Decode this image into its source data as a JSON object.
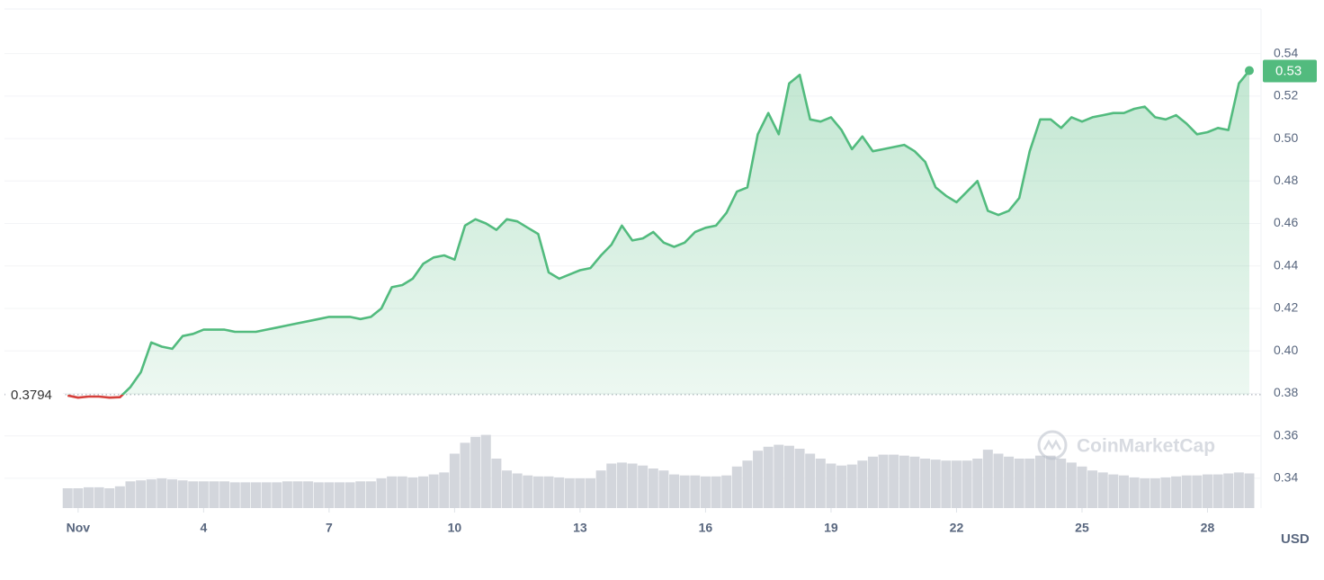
{
  "chart_data": {
    "type": "line",
    "x": [
      0.75,
      1,
      1.25,
      1.5,
      1.75,
      2,
      2.25,
      2.5,
      2.75,
      3,
      3.25,
      3.5,
      3.75,
      4,
      4.25,
      4.5,
      4.75,
      5,
      5.25,
      5.5,
      5.75,
      6,
      6.25,
      6.5,
      6.75,
      7,
      7.25,
      7.5,
      7.75,
      8,
      8.25,
      8.5,
      8.75,
      9,
      9.25,
      9.5,
      9.75,
      10,
      10.25,
      10.5,
      10.75,
      11,
      11.25,
      11.5,
      11.75,
      12,
      12.25,
      12.5,
      12.75,
      13,
      13.25,
      13.5,
      13.75,
      14,
      14.25,
      14.5,
      14.75,
      15,
      15.25,
      15.5,
      15.75,
      16,
      16.25,
      16.5,
      16.75,
      17,
      17.25,
      17.5,
      17.75,
      18,
      18.25,
      18.5,
      18.75,
      19,
      19.25,
      19.5,
      19.75,
      20,
      20.25,
      20.5,
      20.75,
      21,
      21.25,
      21.5,
      21.75,
      22,
      22.25,
      22.5,
      22.75,
      23,
      23.25,
      23.5,
      23.75,
      24,
      24.25,
      24.5,
      24.75,
      25,
      25.25,
      25.5,
      25.75,
      26,
      26.25,
      26.5,
      26.75,
      27,
      27.25,
      27.5,
      27.75,
      28,
      28.25,
      28.5,
      28.75,
      29
    ],
    "values": [
      0.379,
      0.378,
      0.3785,
      0.3785,
      0.378,
      0.3782,
      0.383,
      0.39,
      0.404,
      0.402,
      0.401,
      0.407,
      0.408,
      0.41,
      0.41,
      0.41,
      0.409,
      0.409,
      0.409,
      0.41,
      0.411,
      0.412,
      0.413,
      0.414,
      0.415,
      0.416,
      0.416,
      0.416,
      0.415,
      0.416,
      0.42,
      0.43,
      0.431,
      0.434,
      0.441,
      0.444,
      0.445,
      0.443,
      0.459,
      0.462,
      0.46,
      0.457,
      0.462,
      0.461,
      0.458,
      0.455,
      0.437,
      0.434,
      0.436,
      0.438,
      0.439,
      0.445,
      0.45,
      0.459,
      0.452,
      0.453,
      0.456,
      0.451,
      0.449,
      0.451,
      0.456,
      0.458,
      0.459,
      0.465,
      0.475,
      0.477,
      0.502,
      0.512,
      0.502,
      0.526,
      0.53,
      0.509,
      0.508,
      0.51,
      0.504,
      0.495,
      0.501,
      0.494,
      0.495,
      0.496,
      0.497,
      0.494,
      0.489,
      0.477,
      0.473,
      0.47,
      0.475,
      0.48,
      0.466,
      0.464,
      0.466,
      0.472,
      0.494,
      0.509,
      0.509,
      0.505,
      0.51,
      0.508,
      0.51,
      0.511,
      0.512,
      0.512,
      0.514,
      0.515,
      0.51,
      0.509,
      0.511,
      0.507,
      0.502,
      0.503,
      0.505,
      0.504,
      0.526,
      0.532
    ],
    "volume": [
      20,
      20,
      21,
      21,
      20,
      22,
      27,
      28,
      29,
      30,
      29,
      28,
      27,
      27,
      27,
      27,
      26,
      26,
      26,
      26,
      26,
      27,
      27,
      27,
      26,
      26,
      26,
      26,
      27,
      27,
      30,
      32,
      32,
      31,
      32,
      34,
      36,
      55,
      66,
      72,
      74,
      50,
      38,
      35,
      33,
      32,
      32,
      31,
      30,
      30,
      30,
      38,
      45,
      46,
      45,
      43,
      40,
      38,
      34,
      33,
      33,
      32,
      32,
      33,
      42,
      48,
      58,
      62,
      64,
      63,
      60,
      55,
      50,
      45,
      43,
      44,
      48,
      52,
      54,
      54,
      53,
      52,
      50,
      49,
      48,
      48,
      48,
      50,
      59,
      55,
      52,
      50,
      50,
      53,
      53,
      50,
      46,
      42,
      38,
      36,
      34,
      33,
      31,
      30,
      30,
      31,
      32,
      33,
      33,
      34,
      34,
      35,
      36,
      35
    ],
    "volume_ylim": [
      0,
      100
    ],
    "volume_color": "#d3d6dc",
    "up_color": "#52bb7e",
    "down_color": "#d6403c",
    "xlim": [
      -0.76,
      29.28
    ],
    "xticks": [
      {
        "value": 1,
        "label": "Nov"
      },
      4,
      7,
      10,
      13,
      16,
      19,
      22,
      25,
      28
    ],
    "ylim": [
      0.326,
      0.561
    ],
    "yticks": [
      0.34,
      0.36,
      0.38,
      {
        "value": 0.4,
        "label": "0.40"
      },
      0.42,
      0.44,
      0.46,
      0.48,
      {
        "value": 0.5,
        "label": "0.50"
      },
      0.52,
      0.54
    ],
    "grid": true,
    "baseline": {
      "value": 0.3794,
      "label": "0.3794"
    },
    "last_value_label": "0.53",
    "y_unit": "USD",
    "watermark": "CoinMarketCap"
  }
}
